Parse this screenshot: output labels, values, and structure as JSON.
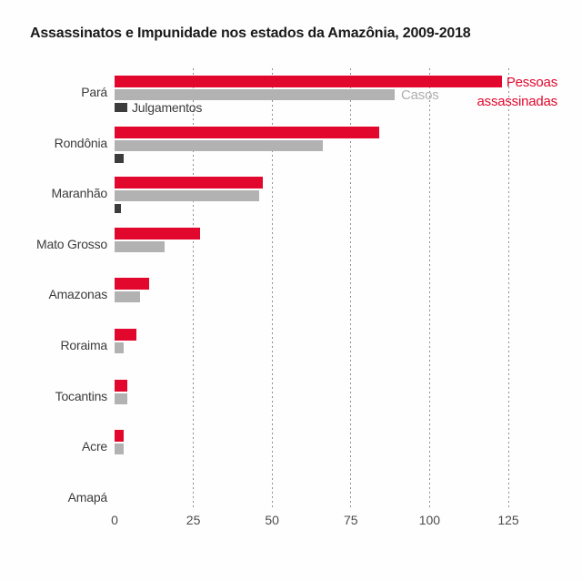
{
  "title": "Assassinatos e Impunidade nos estados da Amazônia, 2009-2018",
  "legend": {
    "assassinated": {
      "label": "Pessoas assassinadas",
      "line1": "Pessoas",
      "line2": "assassinadas"
    },
    "cases_label": "Casos",
    "trials_label": "Julgamentos"
  },
  "colors": {
    "assassinated": "#e2082d",
    "cases": "#b2b2b2",
    "trials": "#3c3c3c",
    "grid": "#8f8f8f",
    "title_text": "#1a1a1a",
    "axis_text": "#4d4d4d"
  },
  "chart_data": {
    "type": "bar",
    "orientation": "horizontal",
    "title": "Assassinatos e Impunidade nos estados da Amazônia, 2009-2018",
    "categories": [
      "Pará",
      "Rondônia",
      "Maranhão",
      "Mato Grosso",
      "Amazonas",
      "Roraima",
      "Tocantins",
      "Acre",
      "Amapá"
    ],
    "series": [
      {
        "name": "Pessoas assassinadas",
        "color": "#e2082d",
        "values": [
          123,
          84,
          47,
          27,
          11,
          7,
          4,
          3,
          0
        ]
      },
      {
        "name": "Casos",
        "color": "#b2b2b2",
        "values": [
          89,
          66,
          46,
          16,
          8,
          3,
          4,
          3,
          0
        ]
      },
      {
        "name": "Julgamentos",
        "color": "#3c3c3c",
        "values": [
          4,
          3,
          2,
          0,
          0,
          0,
          0,
          0,
          0
        ]
      }
    ],
    "x_ticks": [
      0,
      25,
      50,
      75,
      100,
      125
    ],
    "xlim": [
      0,
      125
    ],
    "grid": "dashed-vertical",
    "legend_position": "inline-annotations"
  }
}
